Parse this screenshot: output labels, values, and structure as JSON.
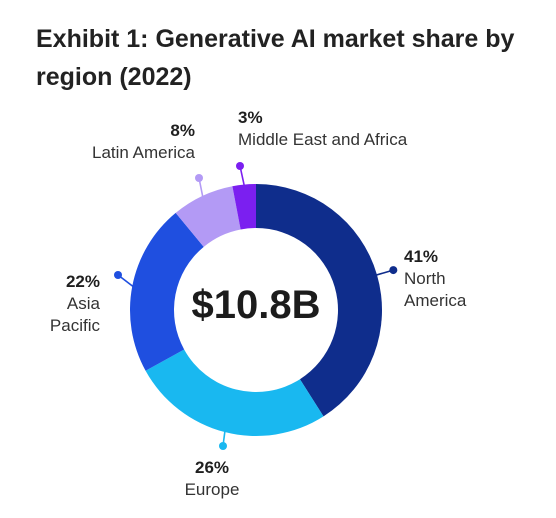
{
  "title": "Exhibit 1: Generative AI market share by region (2022)",
  "chart_data": {
    "type": "pie",
    "title": "Exhibit 1: Generative AI market share by region (2022)",
    "center_label": "$10.8B",
    "unit": "%",
    "slices": [
      {
        "name": "North America",
        "label_lines": [
          "North",
          "America"
        ],
        "value": 41,
        "pct_label": "41%",
        "color": "#0f2d8c"
      },
      {
        "name": "Europe",
        "label_lines": [
          "Europe"
        ],
        "value": 26,
        "pct_label": "26%",
        "color": "#19b8f0"
      },
      {
        "name": "Asia Pacific",
        "label_lines": [
          "Asia",
          "Pacific"
        ],
        "value": 22,
        "pct_label": "22%",
        "color": "#1f4fe0"
      },
      {
        "name": "Latin America",
        "label_lines": [
          "Latin America"
        ],
        "value": 8,
        "pct_label": "8%",
        "color": "#b39af5"
      },
      {
        "name": "Middle East and Africa",
        "label_lines": [
          "Middle East and Africa"
        ],
        "value": 3,
        "pct_label": "3%",
        "color": "#7b1ff0"
      }
    ]
  }
}
